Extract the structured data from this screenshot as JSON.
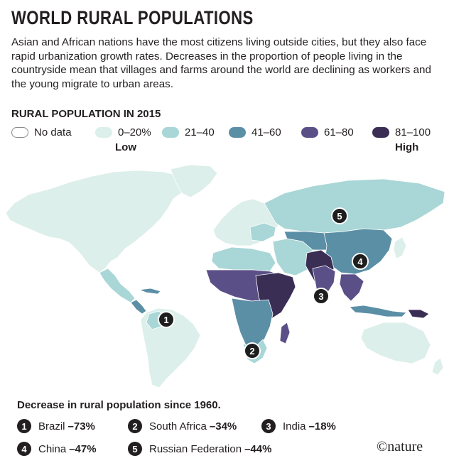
{
  "title": "WORLD RURAL POPULATIONS",
  "intro": "Asian and African nations have the most citizens living outside cities, but they also face rapid urbanization growth rates. Decreases in the proportion of people living in the countryside mean that villages and farms around the world are declining as workers and the young migrate to urban areas.",
  "legend": {
    "title": "RURAL POPULATION IN 2015",
    "low_label": "Low",
    "high_label": "High",
    "items": [
      {
        "label": "No data",
        "color": "#ffffff"
      },
      {
        "label": "0–20%",
        "color": "#dcefea"
      },
      {
        "label": "21–40",
        "color": "#a9d6d6"
      },
      {
        "label": "41–60",
        "color": "#5b8fa6"
      },
      {
        "label": "61–80",
        "color": "#5b4f87"
      },
      {
        "label": "81–100",
        "color": "#3a2e55"
      }
    ]
  },
  "map_markers": [
    {
      "number": "1",
      "country": "Brazil"
    },
    {
      "number": "2",
      "country": "South Africa"
    },
    {
      "number": "3",
      "country": "India"
    },
    {
      "number": "4",
      "country": "China"
    },
    {
      "number": "5",
      "country": "Russian Federation"
    }
  ],
  "decrease": {
    "title": "Decrease in rural population since 1960.",
    "items": [
      {
        "number": "1",
        "country": "Brazil",
        "value": "–73%"
      },
      {
        "number": "2",
        "country": "South Africa",
        "value": "–34%"
      },
      {
        "number": "3",
        "country": "India",
        "value": "–18%"
      },
      {
        "number": "4",
        "country": "China",
        "value": "–47%"
      },
      {
        "number": "5",
        "country": "Russian Federation",
        "value": "–44%"
      }
    ]
  },
  "credit": "©nature"
}
